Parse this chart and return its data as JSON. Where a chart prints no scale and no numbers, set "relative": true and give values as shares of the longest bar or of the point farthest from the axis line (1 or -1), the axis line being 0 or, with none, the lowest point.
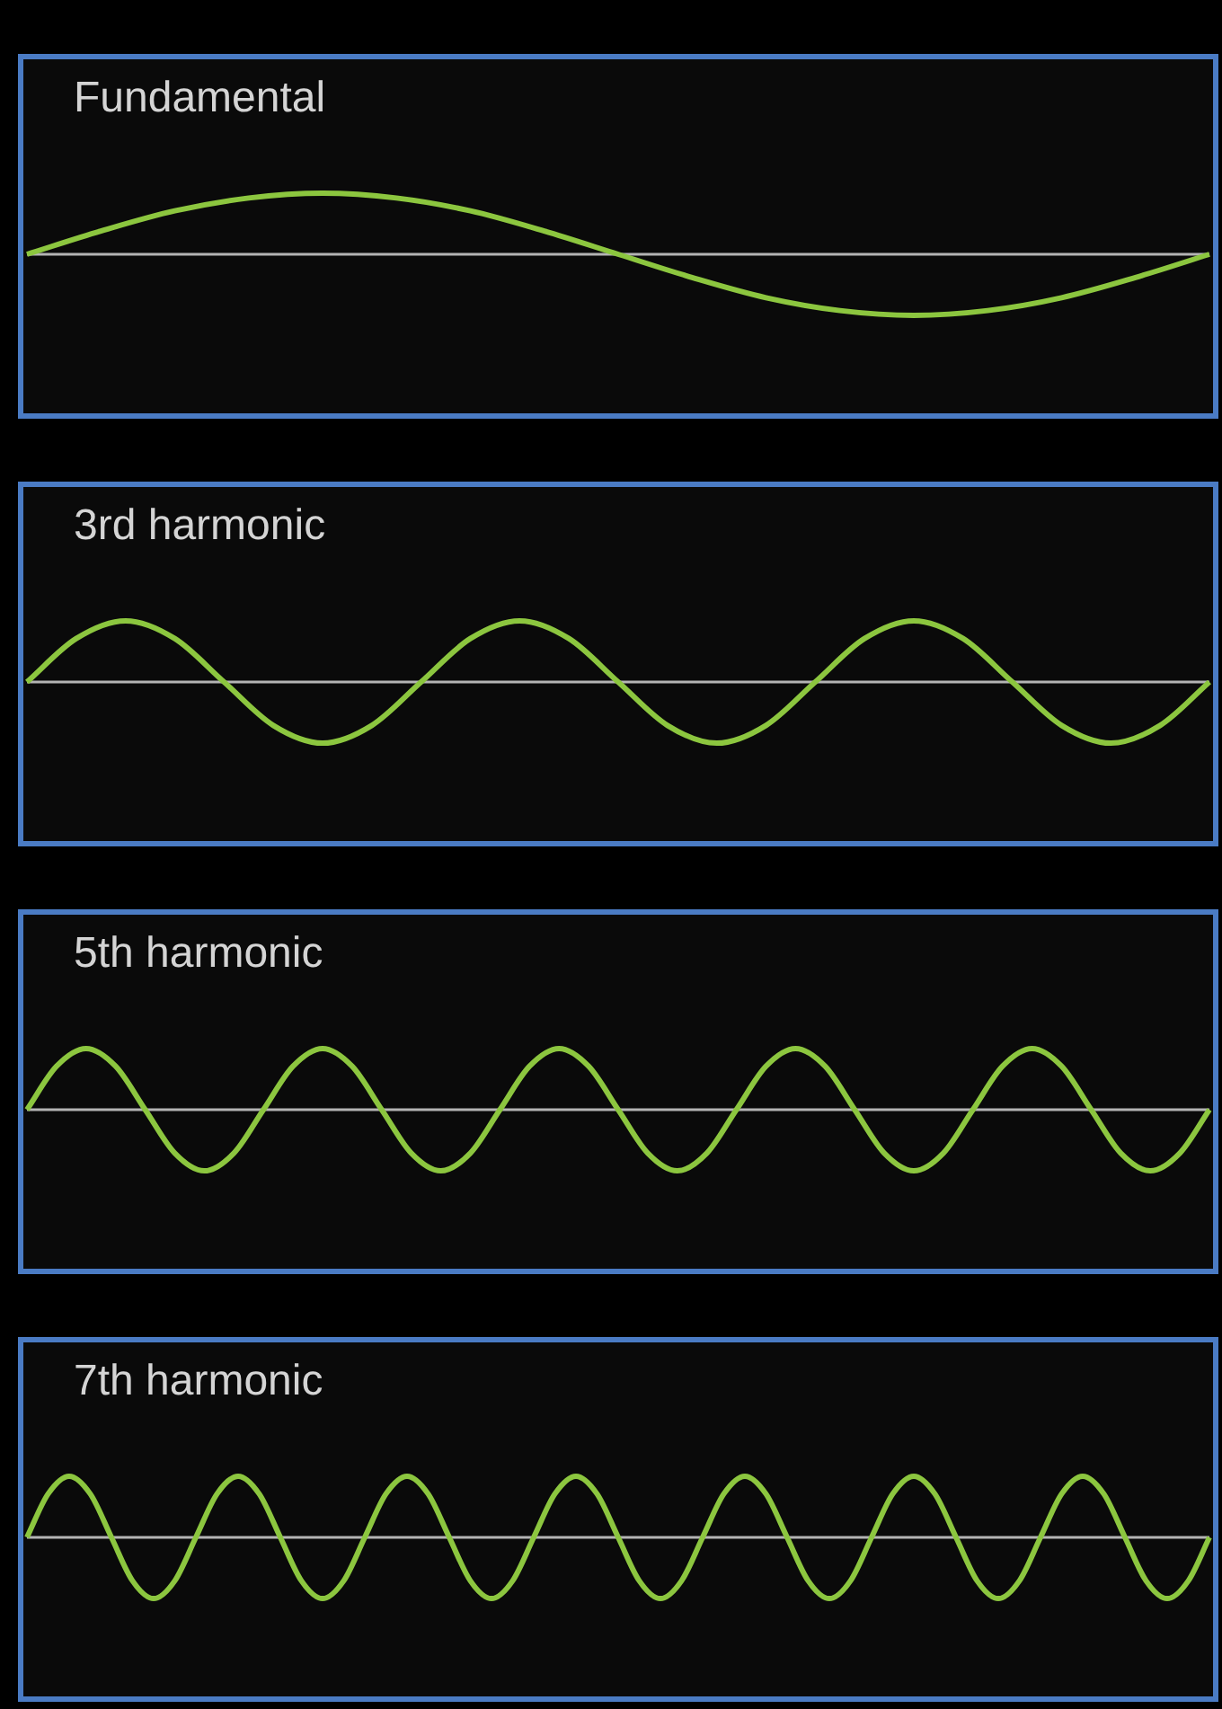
{
  "chart_data": [
    {
      "type": "line",
      "title": "Fundamental",
      "relative": true,
      "color": "#8cc63f",
      "categories": [
        null,
        null,
        null,
        null,
        null,
        null,
        null,
        null,
        null,
        null,
        null,
        null,
        null,
        null,
        null,
        null,
        null
      ],
      "values": [
        0,
        0.38,
        0.71,
        0.92,
        1,
        0.92,
        0.71,
        0.38,
        0,
        -0.38,
        -0.71,
        -0.92,
        -1,
        -0.92,
        -0.71,
        -0.38,
        0
      ]
    },
    {
      "type": "line",
      "title": "3rd harmonic",
      "relative": true,
      "color": "#8cc63f",
      "categories": [
        null,
        null,
        null,
        null,
        null,
        null,
        null,
        null,
        null,
        null,
        null,
        null,
        null,
        null,
        null,
        null,
        null,
        null,
        null,
        null,
        null,
        null,
        null,
        null,
        null
      ],
      "values": [
        0,
        0.71,
        1,
        0.71,
        0,
        -0.71,
        -1,
        -0.71,
        0,
        0.71,
        1,
        0.71,
        0,
        -0.71,
        -1,
        -0.71,
        0,
        0.71,
        1,
        0.71,
        0,
        -0.71,
        -1,
        -0.71,
        0
      ]
    },
    {
      "type": "line",
      "title": "5th harmonic",
      "relative": true,
      "color": "#8cc63f",
      "categories": [
        null,
        null,
        null,
        null,
        null,
        null,
        null,
        null,
        null,
        null,
        null,
        null,
        null,
        null,
        null,
        null,
        null,
        null,
        null,
        null,
        null,
        null,
        null,
        null,
        null,
        null,
        null,
        null,
        null,
        null,
        null,
        null,
        null,
        null,
        null,
        null,
        null,
        null,
        null,
        null,
        null
      ],
      "values": [
        0,
        0.71,
        1,
        0.71,
        0,
        -0.71,
        -1,
        -0.71,
        0,
        0.71,
        1,
        0.71,
        0,
        -0.71,
        -1,
        -0.71,
        0,
        0.71,
        1,
        0.71,
        0,
        -0.71,
        -1,
        -0.71,
        0,
        0.71,
        1,
        0.71,
        0,
        -0.71,
        -1,
        -0.71,
        0,
        0.71,
        1,
        0.71,
        0,
        -0.71,
        -1,
        -0.71,
        0
      ]
    },
    {
      "type": "line",
      "title": "7th harmonic",
      "relative": true,
      "color": "#8cc63f",
      "categories": [
        null,
        null,
        null,
        null,
        null,
        null,
        null,
        null,
        null,
        null,
        null,
        null,
        null,
        null,
        null,
        null,
        null,
        null,
        null,
        null,
        null,
        null,
        null,
        null,
        null,
        null,
        null,
        null,
        null,
        null,
        null,
        null,
        null,
        null,
        null,
        null,
        null,
        null,
        null,
        null,
        null,
        null,
        null,
        null,
        null,
        null,
        null,
        null,
        null,
        null,
        null,
        null,
        null,
        null,
        null,
        null,
        null
      ],
      "values": [
        0,
        0.71,
        1,
        0.71,
        0,
        -0.71,
        -1,
        -0.71,
        0,
        0.71,
        1,
        0.71,
        0,
        -0.71,
        -1,
        -0.71,
        0,
        0.71,
        1,
        0.71,
        0,
        -0.71,
        -1,
        -0.71,
        0,
        0.71,
        1,
        0.71,
        0,
        -0.71,
        -1,
        -0.71,
        0,
        0.71,
        1,
        0.71,
        0,
        -0.71,
        -1,
        -0.71,
        0,
        0.71,
        1,
        0.71,
        0,
        -0.71,
        -1,
        -0.71,
        0,
        0.71,
        1,
        0.71,
        0,
        -0.71,
        -1,
        -0.71,
        0
      ]
    }
  ]
}
